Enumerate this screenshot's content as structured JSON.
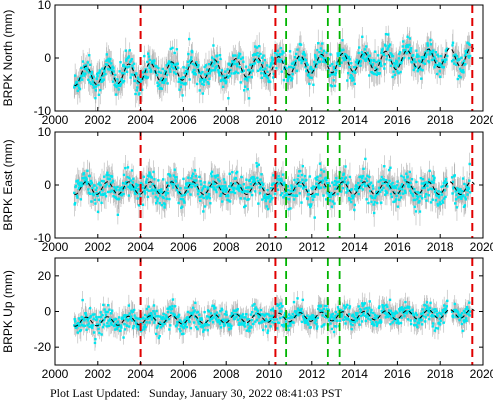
{
  "footer": {
    "label": "Plot Last Updated:",
    "value": "Sunday, January 30, 2022 08:41:03 PST"
  },
  "chart_data": [
    {
      "type": "scatter",
      "ylabel": "BRPK North (mm)",
      "xlim": [
        2000,
        2020
      ],
      "ylim": [
        -10,
        10
      ],
      "x_ticks": [
        "2000",
        "2002",
        "2004",
        "2006",
        "2008",
        "2010",
        "2012",
        "2014",
        "2016",
        "2018",
        "2020"
      ],
      "y_ticks": [
        "-10",
        "0",
        "10"
      ],
      "red_event_lines": [
        2004.0,
        2010.3,
        2019.5
      ],
      "green_event_lines": [
        2010.8,
        2012.75,
        2013.3
      ],
      "data_range": [
        2000.9,
        2019.4
      ],
      "model": {
        "offset": -1.6,
        "trend_per_year": 0.2,
        "seasonal_amp": 1.8
      },
      "spread": 3.0,
      "colors": {
        "data": "#00e5ee",
        "errorbar": "#b4b4b4",
        "model": "#000000",
        "red": "#e00000",
        "green": "#00b400"
      }
    },
    {
      "type": "scatter",
      "ylabel": "BRPK East (mm)",
      "xlim": [
        2000,
        2020
      ],
      "ylim": [
        -10,
        10
      ],
      "x_ticks": [
        "2000",
        "2002",
        "2004",
        "2006",
        "2008",
        "2010",
        "2012",
        "2014",
        "2016",
        "2018",
        "2020"
      ],
      "y_ticks": [
        "-10",
        "0",
        "10"
      ],
      "red_event_lines": [
        2004.0,
        2010.3,
        2019.5
      ],
      "green_event_lines": [
        2010.8,
        2012.75,
        2013.3
      ],
      "data_range": [
        2000.9,
        2019.4
      ],
      "model": {
        "offset": -0.6,
        "trend_per_year": 0.0,
        "seasonal_amp": 1.2
      },
      "spread": 3.0,
      "colors": {
        "data": "#00e5ee",
        "errorbar": "#b4b4b4",
        "model": "#000000",
        "red": "#e00000",
        "green": "#00b400"
      }
    },
    {
      "type": "scatter",
      "ylabel": "BRPK Up (mm)",
      "xlim": [
        2000,
        2020
      ],
      "ylim": [
        -30,
        30
      ],
      "x_ticks": [
        "2000",
        "2002",
        "2004",
        "2006",
        "2008",
        "2010",
        "2012",
        "2014",
        "2016",
        "2018",
        "2020"
      ],
      "y_ticks": [
        "-20",
        "0",
        "20"
      ],
      "red_event_lines": [
        2004.0,
        2010.3,
        2019.5
      ],
      "green_event_lines": [
        2010.8,
        2012.75,
        2013.3
      ],
      "data_range": [
        2000.9,
        2019.4
      ],
      "model": {
        "offset": -3.5,
        "trend_per_year": 0.25,
        "seasonal_amp": 2.5
      },
      "spread": 7.0,
      "colors": {
        "data": "#00e5ee",
        "errorbar": "#b4b4b4",
        "model": "#000000",
        "red": "#e00000",
        "green": "#00b400"
      }
    }
  ]
}
